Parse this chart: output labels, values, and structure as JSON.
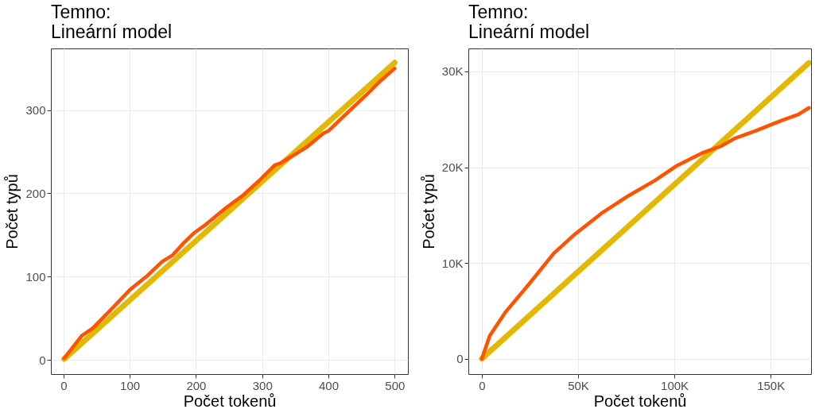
{
  "chart_data": [
    {
      "type": "line",
      "title": "Temno:\nLineární model",
      "xlabel": "Počet tokenů",
      "ylabel": "Počet typů",
      "xlim": [
        -19,
        520
      ],
      "ylim": [
        -17,
        374
      ],
      "xticks": [
        0,
        100,
        200,
        300,
        400,
        500
      ],
      "yticks": [
        0,
        100,
        200,
        300
      ],
      "grid": true,
      "series": [
        {
          "color": "#e3b800",
          "x": [
            1,
            500
          ],
          "values": [
            1,
            357
          ]
        },
        {
          "color": "#ff5300",
          "x": [
            1,
            27.5,
            44,
            76,
            100,
            125,
            149,
            165,
            181,
            198,
            214,
            246,
            270,
            295,
            319,
            327,
            352,
            368,
            392,
            400,
            417,
            457,
            477,
            500
          ],
          "values": [
            2,
            29,
            38,
            64,
            84,
            100,
            118,
            126,
            140,
            153,
            162,
            183,
            197,
            215,
            234,
            236,
            248,
            256,
            272,
            275,
            288,
            318,
            334,
            350
          ]
        }
      ]
    },
    {
      "type": "line",
      "title": "Temno:\nLineární model",
      "xlabel": "Počet tokenů",
      "ylabel": "Počet typů",
      "xlim": [
        -7000,
        171000
      ],
      "ylim": [
        -1600,
        32400
      ],
      "xticks": [
        {
          "value": 0,
          "label": "0"
        },
        {
          "value": 50000,
          "label": "50K"
        },
        {
          "value": 100000,
          "label": "100K"
        },
        {
          "value": 150000,
          "label": "150K"
        }
      ],
      "yticks": [
        {
          "value": 0,
          "label": "0"
        },
        {
          "value": 10000,
          "label": "10K"
        },
        {
          "value": 20000,
          "label": "20K"
        },
        {
          "value": 30000,
          "label": "30K"
        }
      ],
      "grid": true,
      "series": [
        {
          "color": "#e3b800",
          "x": [
            0,
            169900
          ],
          "values": [
            0,
            30900
          ]
        },
        {
          "color": "#ff5300",
          "x": [
            0,
            4100,
            12400,
            24900,
            37300,
            48300,
            62200,
            76000,
            89800,
            100800,
            114600,
            124300,
            131200,
            142300,
            156000,
            164400,
            169900
          ],
          "values": [
            0,
            2400,
            4900,
            7900,
            11000,
            13000,
            15200,
            17000,
            18600,
            20100,
            21500,
            22200,
            23000,
            23800,
            24900,
            25500,
            26200
          ]
        }
      ]
    }
  ]
}
